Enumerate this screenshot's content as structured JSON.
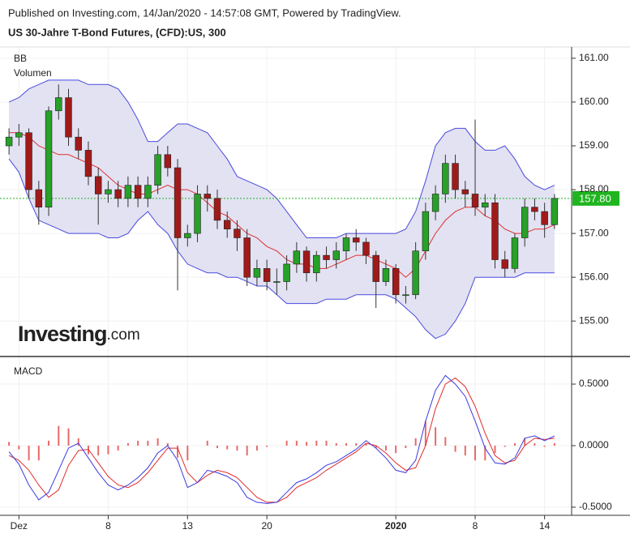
{
  "chart_data": {
    "type": "candlestick",
    "published": "Published on Investing.com, 14/Jan/2020 - 14:57:08 GMT, Powered by TradingView.",
    "title": "US 30-Jahre T-Bond Futures, (CFD):US, 300",
    "indicator_labels": [
      "BB",
      "Volumen"
    ],
    "logo": {
      "brand": "Investing",
      "suffix": ".com"
    },
    "categories": [
      null,
      "Dez",
      null,
      null,
      null,
      null,
      null,
      null,
      null,
      null,
      "8",
      null,
      null,
      null,
      null,
      null,
      null,
      null,
      "13",
      null,
      null,
      null,
      null,
      null,
      null,
      null,
      "20",
      null,
      null,
      null,
      null,
      null,
      null,
      null,
      null,
      null,
      null,
      null,
      null,
      "2020",
      null,
      null,
      null,
      null,
      null,
      null,
      null,
      "8",
      null,
      null,
      null,
      null,
      null,
      null,
      "14",
      null
    ],
    "open": [
      159.0,
      159.2,
      159.3,
      158.0,
      157.6,
      159.8,
      160.1,
      159.2,
      158.9,
      158.3,
      157.9,
      158.0,
      157.8,
      158.1,
      157.8,
      158.1,
      158.8,
      158.5,
      156.9,
      157.0,
      157.9,
      157.8,
      157.3,
      157.1,
      156.9,
      156.0,
      156.2,
      155.9,
      155.9,
      156.3,
      156.6,
      156.1,
      156.5,
      156.4,
      156.6,
      156.9,
      156.8,
      156.5,
      155.9,
      156.2,
      155.6,
      155.6,
      156.6,
      157.5,
      157.9,
      158.6,
      158.0,
      157.9,
      157.6,
      157.7,
      156.4,
      156.2,
      156.9,
      157.6,
      157.5,
      157.2
    ],
    "high": [
      159.4,
      159.5,
      159.4,
      158.2,
      159.9,
      160.4,
      160.3,
      159.4,
      159.1,
      158.5,
      158.2,
      158.2,
      158.3,
      158.3,
      158.3,
      159.0,
      159.0,
      158.7,
      157.2,
      158.1,
      158.1,
      158.0,
      157.5,
      157.3,
      157.1,
      156.4,
      156.4,
      156.2,
      156.5,
      156.8,
      156.7,
      156.6,
      156.7,
      156.8,
      157.0,
      157.1,
      156.9,
      156.6,
      156.4,
      156.3,
      155.8,
      156.8,
      157.7,
      158.1,
      158.8,
      158.8,
      158.2,
      159.6,
      157.9,
      157.9,
      156.6,
      157.0,
      157.8,
      157.8,
      157.7,
      157.9
    ],
    "low": [
      158.8,
      159.0,
      157.8,
      157.2,
      157.4,
      159.6,
      159.0,
      158.7,
      158.1,
      157.2,
      157.7,
      157.6,
      157.6,
      157.6,
      157.6,
      157.9,
      158.3,
      155.7,
      156.7,
      156.8,
      157.5,
      157.1,
      156.9,
      156.6,
      155.8,
      155.8,
      155.7,
      155.6,
      155.7,
      156.1,
      155.9,
      155.9,
      156.2,
      156.2,
      156.4,
      156.6,
      156.3,
      155.3,
      155.8,
      155.4,
      155.4,
      155.5,
      156.4,
      157.3,
      157.7,
      157.8,
      157.6,
      157.4,
      157.4,
      156.2,
      156.0,
      156.1,
      156.7,
      157.3,
      156.9,
      157.1
    ],
    "close": [
      159.2,
      159.3,
      158.0,
      157.6,
      159.8,
      160.1,
      159.2,
      158.9,
      158.3,
      157.9,
      158.0,
      157.8,
      158.1,
      157.8,
      158.1,
      158.8,
      158.5,
      156.9,
      157.0,
      157.9,
      157.8,
      157.3,
      157.1,
      156.9,
      156.0,
      156.2,
      155.9,
      155.9,
      156.3,
      156.6,
      156.1,
      156.5,
      156.4,
      156.6,
      156.9,
      156.8,
      156.5,
      155.9,
      156.2,
      155.6,
      155.6,
      156.6,
      157.5,
      157.9,
      158.6,
      158.0,
      157.9,
      157.6,
      157.7,
      156.4,
      156.2,
      156.9,
      157.6,
      157.5,
      157.2,
      157.8
    ],
    "up_color": "#27a127",
    "down_color": "#a11a1a",
    "bb_upper": [
      160.0,
      160.1,
      160.3,
      160.4,
      160.5,
      160.5,
      160.5,
      160.5,
      160.4,
      160.4,
      160.4,
      160.3,
      160.0,
      159.6,
      159.1,
      159.1,
      159.3,
      159.5,
      159.5,
      159.4,
      159.3,
      159.0,
      158.7,
      158.3,
      158.2,
      158.1,
      158.0,
      157.8,
      157.5,
      157.2,
      156.9,
      156.9,
      156.9,
      156.9,
      157.0,
      157.0,
      157.0,
      157.0,
      157.0,
      157.0,
      157.1,
      157.5,
      158.2,
      159.0,
      159.3,
      159.4,
      159.4,
      159.1,
      158.9,
      158.9,
      159.0,
      158.7,
      158.3,
      158.1,
      158.0,
      158.1
    ],
    "bb_middle": [
      159.3,
      159.3,
      159.2,
      159.0,
      158.9,
      158.8,
      158.8,
      158.7,
      158.6,
      158.5,
      158.3,
      158.1,
      158.0,
      157.9,
      157.9,
      158.0,
      158.1,
      158.0,
      158.0,
      157.9,
      157.7,
      157.5,
      157.4,
      157.2,
      157.0,
      156.9,
      156.7,
      156.6,
      156.4,
      156.3,
      156.3,
      156.2,
      156.2,
      156.3,
      156.4,
      156.5,
      156.5,
      156.4,
      156.3,
      156.2,
      156.0,
      156.2,
      156.6,
      157.0,
      157.3,
      157.5,
      157.6,
      157.6,
      157.4,
      157.3,
      157.1,
      157.0,
      157.0,
      157.1,
      157.1,
      157.2
    ],
    "bb_lower": [
      158.7,
      158.4,
      157.8,
      157.3,
      157.2,
      157.1,
      157.0,
      157.0,
      157.0,
      157.0,
      156.9,
      156.9,
      157.0,
      157.3,
      157.5,
      157.2,
      157.0,
      156.6,
      156.3,
      156.2,
      156.1,
      156.1,
      156.0,
      156.0,
      155.9,
      155.8,
      155.8,
      155.6,
      155.4,
      155.4,
      155.4,
      155.4,
      155.5,
      155.5,
      155.5,
      155.6,
      155.6,
      155.6,
      155.6,
      155.5,
      155.3,
      155.1,
      154.8,
      154.6,
      154.7,
      155.0,
      155.4,
      156.0,
      156.0,
      156.0,
      156.0,
      156.0,
      156.1,
      156.1,
      156.1,
      156.1
    ],
    "bb_band_color": "#4a4adf",
    "bb_middle_color": "#e03030",
    "bb_fill": "#e2e2f2",
    "last_price": {
      "value": 157.8,
      "label": "157.80"
    },
    "last_price_color": "#1fb51f",
    "ylim": [
      154.19,
      161.22
    ],
    "yticks": [
      {
        "value": 155,
        "label": "155.00"
      },
      {
        "value": 156,
        "label": "156.00"
      },
      {
        "value": 157,
        "label": "157.00"
      },
      {
        "value": 158,
        "label": "158.00"
      },
      {
        "value": 159,
        "label": "159.00"
      },
      {
        "value": 160,
        "label": "160.00"
      },
      {
        "value": 161,
        "label": "161.00"
      }
    ],
    "macd": {
      "title": "MACD",
      "macd": [
        -0.05,
        -0.15,
        -0.32,
        -0.44,
        -0.38,
        -0.2,
        -0.02,
        0.02,
        -0.1,
        -0.22,
        -0.32,
        -0.36,
        -0.32,
        -0.26,
        -0.18,
        -0.06,
        0.0,
        -0.12,
        -0.34,
        -0.3,
        -0.2,
        -0.22,
        -0.25,
        -0.3,
        -0.42,
        -0.46,
        -0.47,
        -0.46,
        -0.38,
        -0.3,
        -0.27,
        -0.22,
        -0.16,
        -0.13,
        -0.08,
        -0.03,
        0.04,
        -0.02,
        -0.1,
        -0.2,
        -0.22,
        -0.12,
        0.2,
        0.45,
        0.57,
        0.5,
        0.4,
        0.2,
        -0.02,
        -0.14,
        -0.15,
        -0.1,
        0.06,
        0.08,
        0.04,
        0.08
      ],
      "signal": [
        -0.08,
        -0.12,
        -0.2,
        -0.32,
        -0.42,
        -0.36,
        -0.16,
        -0.04,
        -0.03,
        -0.14,
        -0.25,
        -0.32,
        -0.34,
        -0.3,
        -0.22,
        -0.12,
        -0.02,
        -0.02,
        -0.22,
        -0.3,
        -0.24,
        -0.2,
        -0.22,
        -0.26,
        -0.34,
        -0.42,
        -0.46,
        -0.46,
        -0.42,
        -0.34,
        -0.3,
        -0.26,
        -0.2,
        -0.15,
        -0.1,
        -0.05,
        0.02,
        0.0,
        -0.06,
        -0.14,
        -0.2,
        -0.18,
        0.0,
        0.3,
        0.5,
        0.55,
        0.48,
        0.32,
        0.1,
        -0.08,
        -0.14,
        -0.12,
        0.0,
        0.06,
        0.05,
        0.06
      ],
      "histogram": [
        0.03,
        -0.03,
        -0.12,
        -0.12,
        0.04,
        0.16,
        0.14,
        0.06,
        -0.07,
        -0.08,
        -0.07,
        -0.04,
        0.02,
        0.04,
        0.04,
        0.06,
        0.02,
        -0.1,
        -0.12,
        0,
        0.04,
        -0.02,
        -0.03,
        -0.04,
        -0.08,
        -0.04,
        -0.01,
        0,
        0.04,
        0.04,
        0.03,
        0.04,
        0.04,
        0.02,
        0.02,
        0.02,
        0.02,
        -0.02,
        -0.04,
        -0.06,
        -0.02,
        0.06,
        0.2,
        0.15,
        0.07,
        -0.05,
        -0.08,
        -0.12,
        -0.12,
        -0.06,
        -0.01,
        0.02,
        0.06,
        0.02,
        -0.01,
        0.02
      ],
      "macd_color": "#3a3ae0",
      "signal_color": "#e02a2a",
      "hist_color": "#e86a6a",
      "ylim": [
        -0.566,
        0.711
      ],
      "yticks": [
        {
          "value": -0.5,
          "label": "-0.5000"
        },
        {
          "value": 0,
          "label": "0.0000"
        },
        {
          "value": 0.5,
          "label": "0.5000"
        }
      ]
    },
    "grid": true
  }
}
